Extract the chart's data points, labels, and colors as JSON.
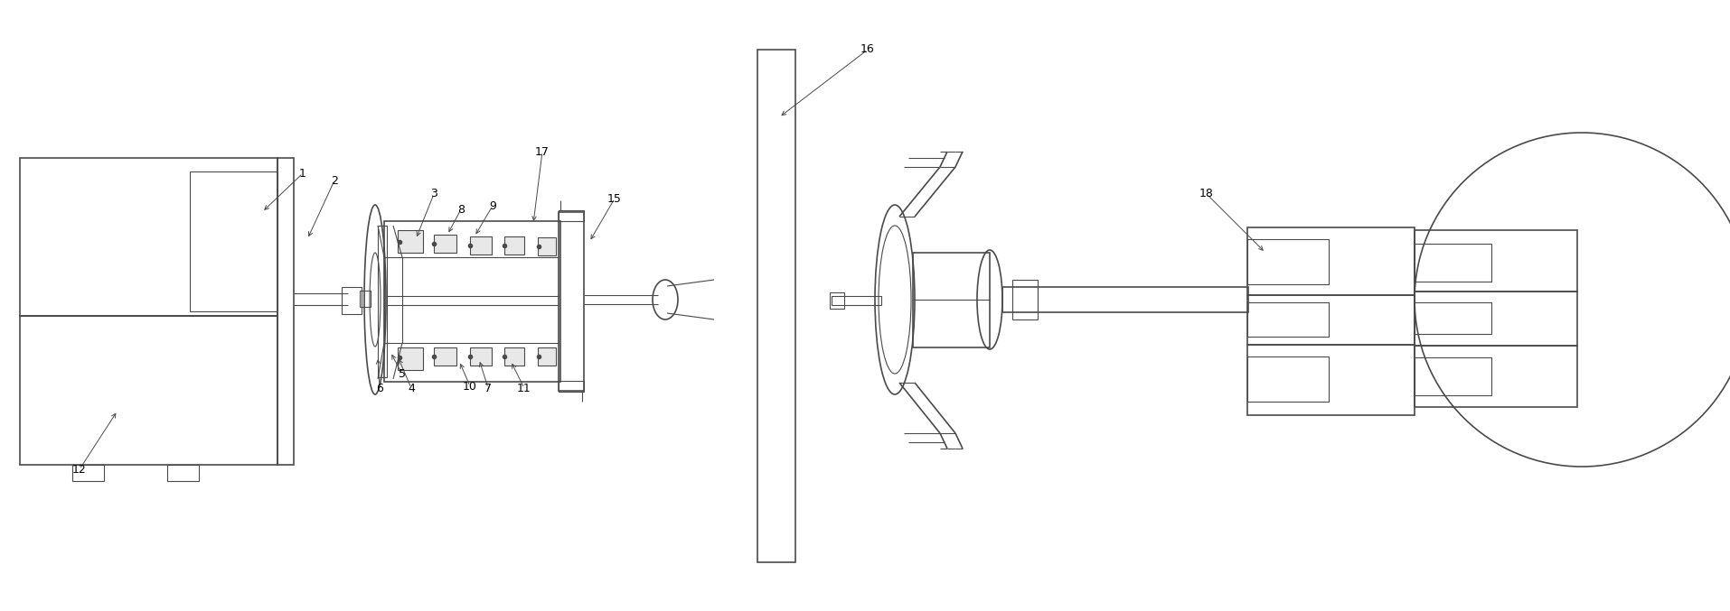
{
  "fig_width": 19.14,
  "fig_height": 6.77,
  "dpi": 100,
  "line_color": "#4a4a4a",
  "bg_color": "#ffffff"
}
